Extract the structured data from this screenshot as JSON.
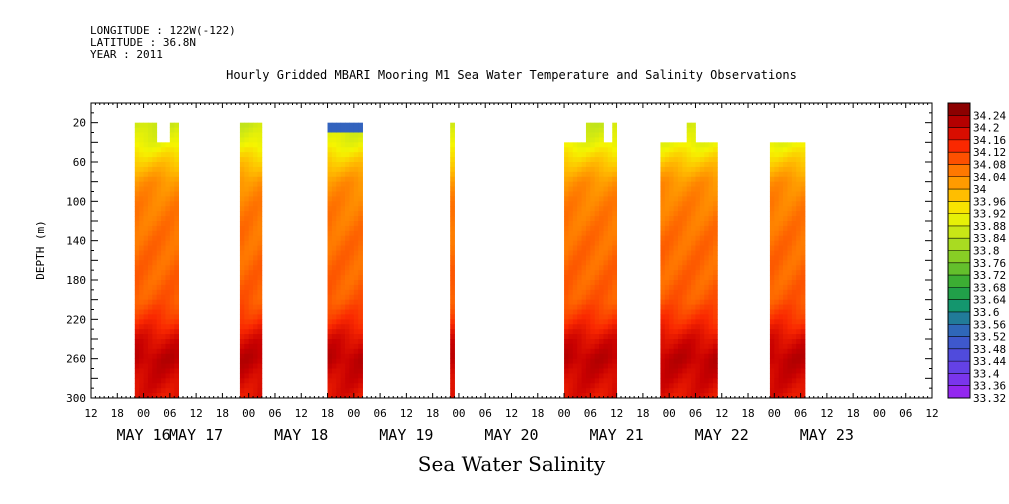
{
  "header": {
    "longitude": "LONGITUDE : 122W(-122)",
    "latitude": "LATITUDE : 36.8N",
    "year": "YEAR : 2011"
  },
  "chart_data": {
    "type": "heatmap",
    "title": "Hourly Gridded MBARI Mooring M1 Sea Water Temperature and Salinity Observations",
    "xlabel": "Sea Water Salinity",
    "ylabel": "DEPTH (m)",
    "x_hours_range": [
      -12,
      180
    ],
    "x_tick_hours": [
      -12,
      -6,
      0,
      6,
      12,
      18,
      24,
      30,
      36,
      42,
      48,
      54,
      60,
      66,
      72,
      78,
      84,
      90,
      96,
      102,
      108,
      114,
      120,
      126,
      132,
      138,
      144,
      150,
      156,
      162,
      168,
      174,
      180
    ],
    "x_tick_labels": [
      "12",
      "18",
      "00",
      "06",
      "12",
      "18",
      "00",
      "06",
      "12",
      "18",
      "00",
      "06",
      "12",
      "18",
      "00",
      "06",
      "12",
      "18",
      "00",
      "06",
      "12",
      "18",
      "00",
      "06",
      "12",
      "18",
      "00",
      "06",
      "12",
      "18",
      "00",
      "06",
      "12"
    ],
    "date_labels": [
      {
        "label": "MAY 16",
        "hour": 0
      },
      {
        "label": "MAY 17",
        "hour": 12
      },
      {
        "label": "MAY 18",
        "hour": 36
      },
      {
        "label": "MAY 19",
        "hour": 60
      },
      {
        "label": "MAY 20",
        "hour": 84
      },
      {
        "label": "MAY 21",
        "hour": 108
      },
      {
        "label": "MAY 22",
        "hour": 132
      },
      {
        "label": "MAY 23",
        "hour": 156
      }
    ],
    "ylim": [
      0,
      300
    ],
    "y_tick_values": [
      20,
      60,
      100,
      140,
      180,
      220,
      260,
      300
    ],
    "y_tick_labels": [
      "20",
      "60",
      "100",
      "140",
      "180",
      "220",
      "260",
      "300"
    ],
    "colorbar": {
      "labels": [
        "34.24",
        "34.2",
        "34.16",
        "34.12",
        "34.08",
        "34.04",
        "34",
        "33.96",
        "33.92",
        "33.88",
        "33.84",
        "33.8",
        "33.76",
        "33.72",
        "33.68",
        "33.64",
        "33.6",
        "33.56",
        "33.52",
        "33.48",
        "33.44",
        "33.4",
        "33.36",
        "33.32"
      ],
      "min": 33.32,
      "max": 34.26
    },
    "profile": [
      {
        "depth": 20,
        "value": 33.86
      },
      {
        "depth": 40,
        "value": 33.9
      },
      {
        "depth": 60,
        "value": 33.97
      },
      {
        "depth": 80,
        "value": 34.03
      },
      {
        "depth": 100,
        "value": 34.05
      },
      {
        "depth": 140,
        "value": 34.07
      },
      {
        "depth": 180,
        "value": 34.08
      },
      {
        "depth": 200,
        "value": 34.09
      },
      {
        "depth": 220,
        "value": 34.13
      },
      {
        "depth": 240,
        "value": 34.18
      },
      {
        "depth": 260,
        "value": 34.21
      },
      {
        "depth": 280,
        "value": 34.19
      },
      {
        "depth": 300,
        "value": 34.17
      }
    ],
    "segments": [
      {
        "start": -2,
        "end": 8,
        "top": 20,
        "notch": {
          "from": 3,
          "to": 6,
          "top": 40
        }
      },
      {
        "start": 22,
        "end": 27,
        "top": 20
      },
      {
        "start": 42,
        "end": 50,
        "top": 20,
        "low_top": 53.5,
        "notch": {
          "from": 50,
          "to": 51,
          "top": 40
        }
      },
      {
        "start": 70,
        "end": 71,
        "top": 20
      },
      {
        "start": 96,
        "end": 108,
        "top": 40,
        "high": {
          "from": 101,
          "to": 105,
          "top": 20
        },
        "high2": {
          "from": 107,
          "to": 108,
          "top": 20
        }
      },
      {
        "start": 118,
        "end": 131,
        "top": 40,
        "high": {
          "from": 124,
          "to": 126,
          "top": 20
        }
      },
      {
        "start": 143,
        "end": 151,
        "top": 40
      }
    ]
  }
}
